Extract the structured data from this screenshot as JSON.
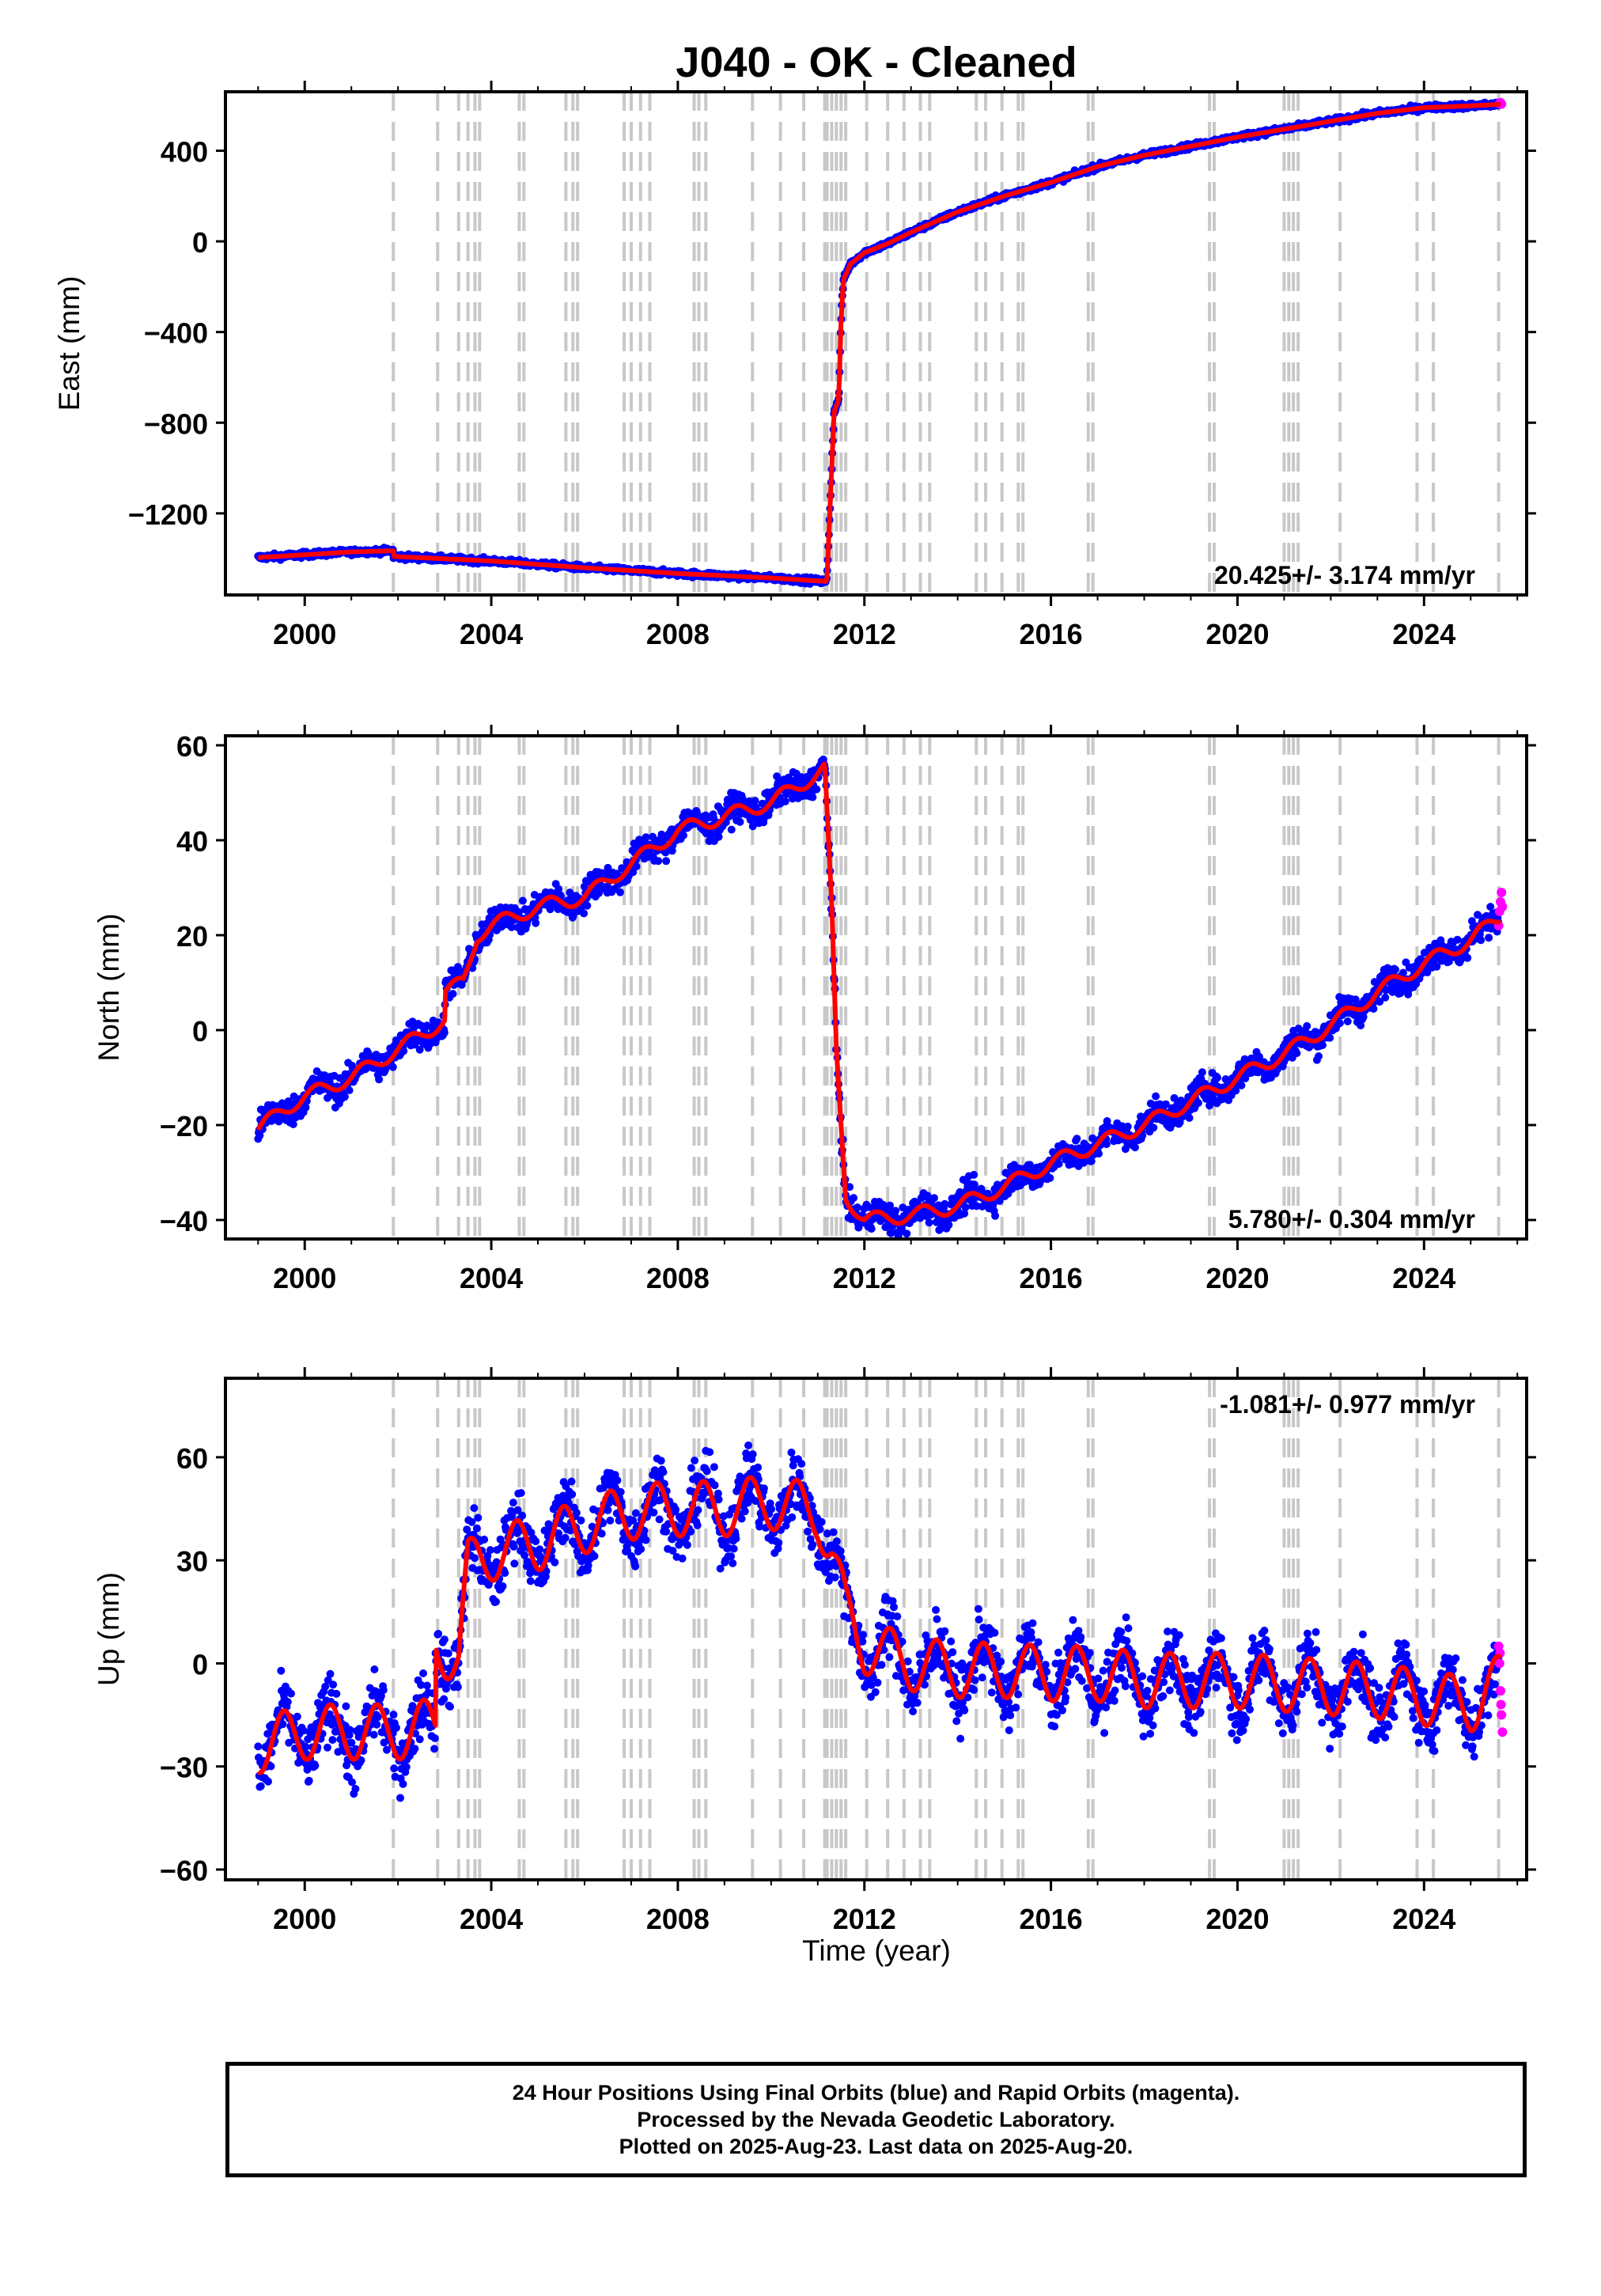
{
  "title": "J040  - OK - Cleaned",
  "xlabel": "Time (year)",
  "footer": {
    "line1": "24 Hour Positions Using Final Orbits (blue) and Rapid Orbits (magenta).",
    "line2": "Processed by the Nevada Geodetic Laboratory.",
    "line3": "Plotted on 2025-Aug-23. Last data on 2025-Aug-20."
  },
  "colors": {
    "final": "#0000ff",
    "rapid": "#ff00ff",
    "model": "#ff0000",
    "steps": "#c8c8c8",
    "axis": "#000000"
  },
  "chart_data": [
    {
      "type": "scatter",
      "ylabel": "East (mm)",
      "xlim": [
        1998.3,
        2026.2
      ],
      "ylim": [
        -1560,
        660
      ],
      "yticks": [
        400,
        0,
        -400,
        -800,
        -1200
      ],
      "yticklabels": [
        "400",
        "0",
        "−400",
        "−800",
        "−1200"
      ],
      "xticks": [
        2000,
        2004,
        2008,
        2012,
        2016,
        2020,
        2024
      ],
      "rate": "20.425+/- 3.174 mm/yr",
      "rate_position": "bottom-right",
      "grid": false,
      "model": [
        [
          1999.0,
          -1395
        ],
        [
          2001.0,
          -1370
        ],
        [
          2001.9,
          -1365
        ],
        [
          2001.9,
          -1390
        ],
        [
          2004,
          -1410
        ],
        [
          2006,
          -1440
        ],
        [
          2008,
          -1465
        ],
        [
          2010,
          -1485
        ],
        [
          2011.18,
          -1500
        ],
        [
          2011.2,
          -1480
        ],
        [
          2011.3,
          -1000
        ],
        [
          2011.35,
          -750
        ],
        [
          2011.45,
          -700
        ],
        [
          2011.5,
          -350
        ],
        [
          2011.55,
          -170
        ],
        [
          2011.7,
          -100
        ],
        [
          2012.0,
          -50
        ],
        [
          2012.5,
          -10
        ],
        [
          2013,
          40
        ],
        [
          2014,
          130
        ],
        [
          2015,
          200
        ],
        [
          2016,
          260
        ],
        [
          2017,
          330
        ],
        [
          2018,
          380
        ],
        [
          2019,
          420
        ],
        [
          2020,
          460
        ],
        [
          2021,
          495
        ],
        [
          2022,
          530
        ],
        [
          2023,
          565
        ],
        [
          2024,
          590
        ],
        [
          2025,
          598
        ],
        [
          2025.65,
          605
        ]
      ],
      "rapid": [
        [
          2025.62,
          608
        ],
        [
          2025.64,
          612
        ],
        [
          2025.66,
          606
        ]
      ]
    },
    {
      "type": "scatter",
      "ylabel": "North (mm)",
      "xlim": [
        1998.3,
        2026.2
      ],
      "ylim": [
        -44,
        62
      ],
      "yticks": [
        60,
        40,
        20,
        0,
        -20,
        -40
      ],
      "yticklabels": [
        "60",
        "40",
        "20",
        "0",
        "−20",
        "−40"
      ],
      "xticks": [
        2000,
        2004,
        2008,
        2012,
        2016,
        2020,
        2024
      ],
      "rate": "5.780+/- 0.304 mm/yr",
      "rate_position": "bottom-right",
      "grid": false,
      "model": [
        [
          1999.0,
          -21
        ],
        [
          1999.5,
          -17
        ],
        [
          2000.0,
          -14
        ],
        [
          2001,
          -10
        ],
        [
          2002,
          -4
        ],
        [
          2003,
          2
        ],
        [
          2003.0,
          8
        ],
        [
          2003.4,
          10
        ],
        [
          2003.7,
          20
        ],
        [
          2004,
          22
        ],
        [
          2005,
          26
        ],
        [
          2006,
          28
        ],
        [
          2007,
          35
        ],
        [
          2008,
          42
        ],
        [
          2009,
          45
        ],
        [
          2010,
          48
        ],
        [
          2011,
          54
        ],
        [
          2011.15,
          55
        ],
        [
          2011.3,
          25
        ],
        [
          2011.4,
          -5
        ],
        [
          2011.5,
          -20
        ],
        [
          2011.6,
          -35
        ],
        [
          2012,
          -40
        ],
        [
          2013,
          -39
        ],
        [
          2014,
          -37
        ],
        [
          2015,
          -33
        ],
        [
          2016,
          -28
        ],
        [
          2017,
          -24
        ],
        [
          2018,
          -20
        ],
        [
          2019,
          -15
        ],
        [
          2020,
          -10
        ],
        [
          2021,
          -5
        ],
        [
          2022,
          1
        ],
        [
          2023,
          8
        ],
        [
          2024,
          14
        ],
        [
          2025,
          19
        ],
        [
          2025.65,
          24
        ]
      ],
      "rapid": [
        [
          2025.6,
          22
        ],
        [
          2025.62,
          25
        ],
        [
          2025.64,
          27
        ],
        [
          2025.66,
          29
        ],
        [
          2025.68,
          26
        ]
      ]
    },
    {
      "type": "scatter",
      "ylabel": "Up (mm)",
      "xlim": [
        1998.3,
        2026.2
      ],
      "ylim": [
        -63,
        83
      ],
      "yticks": [
        60,
        30,
        0,
        -30,
        -60
      ],
      "yticklabels": [
        "60",
        "30",
        "0",
        "−30",
        "−60"
      ],
      "xticks": [
        2000,
        2004,
        2008,
        2012,
        2016,
        2020,
        2024
      ],
      "rate": "-1.081+/- 0.977 mm/yr",
      "rate_position": "top-right",
      "grid": false,
      "model": [
        [
          1999.0,
          -24
        ],
        [
          2000.0,
          -20
        ],
        [
          2001,
          -20
        ],
        [
          2002,
          -20
        ],
        [
          2002.8,
          -18
        ],
        [
          2002.8,
          5
        ],
        [
          2003.3,
          2
        ],
        [
          2003.5,
          28
        ],
        [
          2004,
          32
        ],
        [
          2005,
          35
        ],
        [
          2006,
          40
        ],
        [
          2007,
          44
        ],
        [
          2008,
          45
        ],
        [
          2009,
          45
        ],
        [
          2010,
          47
        ],
        [
          2011,
          44
        ],
        [
          2011.3,
          32
        ],
        [
          2011.6,
          15
        ],
        [
          2012,
          5
        ],
        [
          2013,
          0
        ],
        [
          2014,
          -2
        ],
        [
          2015,
          -2
        ],
        [
          2016,
          -3
        ],
        [
          2017,
          -3
        ],
        [
          2018,
          -5
        ],
        [
          2019,
          -5
        ],
        [
          2020,
          -5
        ],
        [
          2021,
          -6
        ],
        [
          2022,
          -7
        ],
        [
          2023,
          -8
        ],
        [
          2024,
          -10
        ],
        [
          2025,
          -12
        ],
        [
          2025.65,
          -5
        ]
      ],
      "rapid": [
        [
          2025.6,
          5
        ],
        [
          2025.62,
          0
        ],
        [
          2025.64,
          -8
        ],
        [
          2025.66,
          -15
        ],
        [
          2025.68,
          -20
        ],
        [
          2025.63,
          3
        ],
        [
          2025.65,
          -12
        ]
      ]
    }
  ],
  "step_years": [
    2001.9,
    2002.85,
    2003.3,
    2003.5,
    2003.65,
    2003.75,
    2004.6,
    2004.7,
    2005.6,
    2005.75,
    2005.85,
    2006.85,
    2007.0,
    2007.2,
    2007.4,
    2008.35,
    2008.45,
    2008.6,
    2009.6,
    2010.2,
    2010.7,
    2011.15,
    2011.2,
    2011.3,
    2011.4,
    2011.5,
    2011.6,
    2012.05,
    2012.5,
    2012.85,
    2013.2,
    2013.4,
    2014.4,
    2014.6,
    2014.95,
    2015.3,
    2015.4,
    2016.8,
    2016.9,
    2019.4,
    2019.5,
    2021.0,
    2021.1,
    2021.2,
    2021.3,
    2022.2,
    2023.85,
    2024.2,
    2025.6
  ]
}
